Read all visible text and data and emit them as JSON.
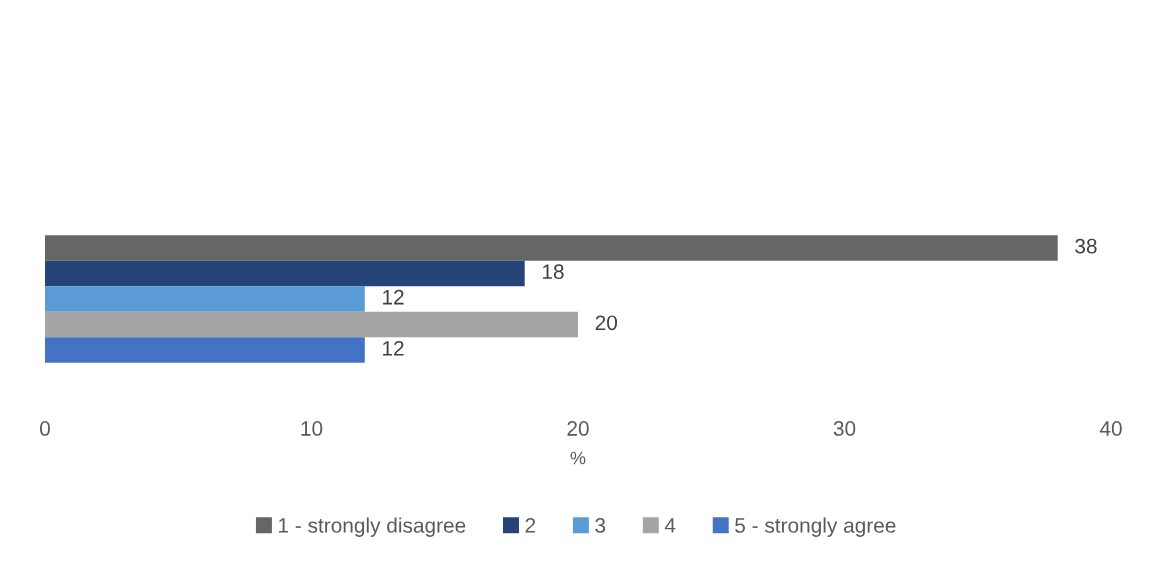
{
  "chart_data": {
    "type": "bar",
    "orientation": "horizontal",
    "categories": [
      null
    ],
    "series": [
      {
        "name": "1 - strongly disagree",
        "color": "#666666",
        "values": [
          38
        ]
      },
      {
        "name": "2",
        "color": "#264478",
        "values": [
          18
        ]
      },
      {
        "name": "3",
        "color": "#5b9bd5",
        "values": [
          12
        ]
      },
      {
        "name": "4",
        "color": "#a5a5a5",
        "values": [
          20
        ]
      },
      {
        "name": "5 - strongly agree",
        "color": "#4472c4",
        "values": [
          12
        ]
      }
    ],
    "xlabel": "%",
    "xlim": [
      0,
      40
    ],
    "xticks": [
      0,
      10,
      20,
      30,
      40
    ],
    "grid": false,
    "legend": "bottom",
    "data_labels": true
  }
}
